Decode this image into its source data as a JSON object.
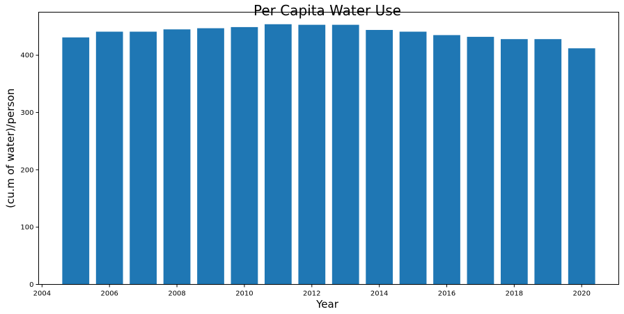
{
  "chart_data": {
    "type": "bar",
    "title": "Per Capita Water Use",
    "xlabel": "Year",
    "ylabel": "(cu.m of water)/person",
    "x": [
      2005,
      2006,
      2007,
      2008,
      2009,
      2010,
      2011,
      2012,
      2013,
      2014,
      2015,
      2016,
      2017,
      2018,
      2019,
      2020
    ],
    "values": [
      431,
      441,
      441,
      445,
      447,
      449,
      454,
      453,
      453,
      444,
      441,
      435,
      432,
      428,
      428,
      412
    ],
    "xlim": [
      2003.9,
      2021.1
    ],
    "ylim": [
      0,
      475
    ],
    "xticks": [
      2004,
      2006,
      2008,
      2010,
      2012,
      2014,
      2016,
      2018,
      2020
    ],
    "yticks": [
      0,
      100,
      200,
      300,
      400
    ],
    "bar_color": "#1f77b4",
    "grid": false
  }
}
